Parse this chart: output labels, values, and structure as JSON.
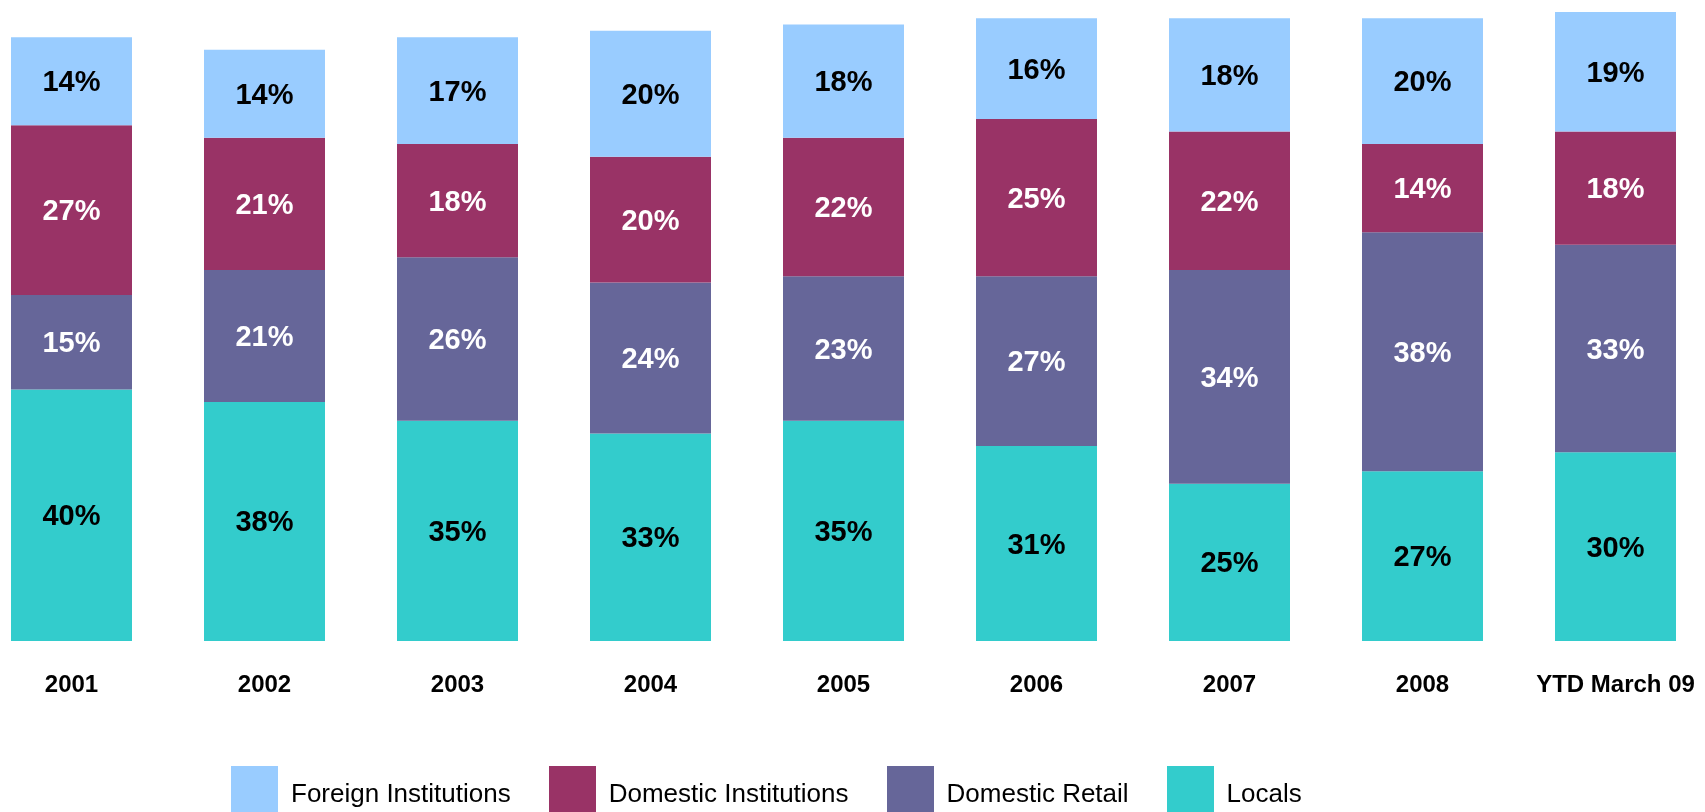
{
  "chart_data": {
    "type": "bar",
    "stacked": true,
    "legend": "bottom",
    "categories": [
      "2001",
      "2002",
      "2003",
      "2004",
      "2005",
      "2006",
      "2007",
      "2008",
      "YTD March 09"
    ],
    "series": [
      {
        "name": "Locals",
        "color": "#33cccc",
        "values": [
          40,
          38,
          35,
          33,
          35,
          31,
          25,
          27,
          30
        ],
        "value_labels": [
          "40%",
          "38%",
          "35%",
          "33%",
          "35%",
          "31%",
          "25%",
          "27%",
          "30%"
        ]
      },
      {
        "name": "Domestic Retail",
        "color": "#666699",
        "values": [
          15,
          21,
          26,
          24,
          23,
          27,
          34,
          38,
          33
        ],
        "value_labels": [
          "15%",
          "21%",
          "26%",
          "24%",
          "23%",
          "27%",
          "34%",
          "38%",
          "33%"
        ]
      },
      {
        "name": "Domestic Institutions",
        "color": "#993366",
        "values": [
          27,
          21,
          18,
          20,
          22,
          25,
          22,
          14,
          18
        ],
        "value_labels": [
          "27%",
          "21%",
          "18%",
          "20%",
          "22%",
          "25%",
          "22%",
          "14%",
          "18%"
        ]
      },
      {
        "name": "Foreign Institutions",
        "color": "#99ccff",
        "values": [
          14,
          14,
          17,
          20,
          18,
          16,
          18,
          20,
          19
        ],
        "value_labels": [
          "14%",
          "14%",
          "17%",
          "20%",
          "18%",
          "16%",
          "18%",
          "20%",
          "19%"
        ]
      }
    ]
  }
}
